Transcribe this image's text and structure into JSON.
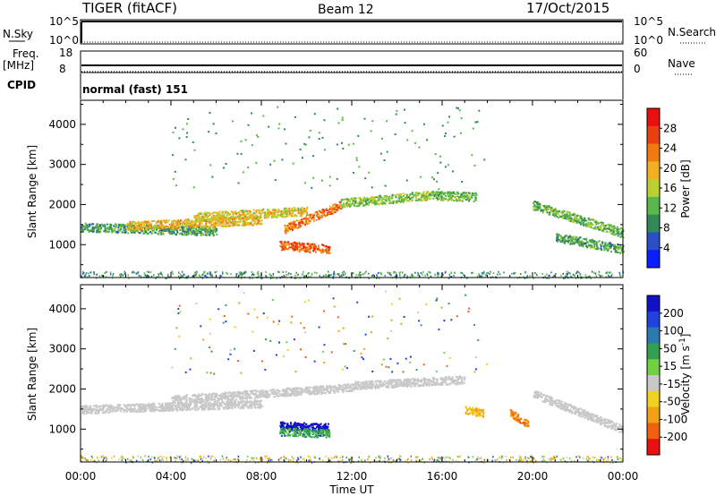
{
  "header": {
    "radar": "TIGER (fitACF)",
    "beam": "Beam 12",
    "date": "17/Oct/2015"
  },
  "param_panels": {
    "nsky_label": "N.Sky",
    "nsearch_label": "N.Search",
    "freq_label": "Freq.",
    "freq_unit": "[MHz]",
    "nave_label": "Nave",
    "cpid_label": "CPID",
    "cpid_value": "normal (fast) 151",
    "noise_ticks_left": [
      "10^5",
      "10^0"
    ],
    "noise_ticks_right": [
      "10^5",
      "10^0"
    ],
    "freq_ticks_left": [
      "18",
      "8"
    ],
    "freq_ticks_right": [
      "60",
      "0"
    ]
  },
  "x_axis": {
    "label": "Time UT",
    "ticks": [
      "00:00",
      "04:00",
      "08:00",
      "12:00",
      "16:00",
      "20:00",
      "00:00"
    ]
  },
  "y_axis": {
    "label": "Slant Range [km]",
    "ticks": [
      "1000",
      "2000",
      "3000",
      "4000"
    ]
  },
  "power_colorbar": {
    "label": "Power [dB]",
    "ticks": [
      "4",
      "8",
      "12",
      "16",
      "20",
      "24",
      "28"
    ],
    "colors": [
      "#0a1eff",
      "#2a4fc8",
      "#2f8a58",
      "#58b84a",
      "#b8d030",
      "#f0b020",
      "#f07a10",
      "#e84010",
      "#e81010"
    ]
  },
  "velocity_colorbar": {
    "label": "Velocity [m s^-1]",
    "ticks": [
      "200",
      "100",
      "50",
      "15",
      "-15",
      "-50",
      "-100",
      "-200"
    ],
    "colors": [
      "#1010c8",
      "#2040e0",
      "#2a7ab0",
      "#30a050",
      "#70d040",
      "#c8c8c8",
      "#f0d020",
      "#f0a010",
      "#f06010",
      "#e81010"
    ]
  },
  "chart_data": [
    {
      "type": "heatmap",
      "title": "Power [dB]",
      "xlabel": "Time UT",
      "ylabel": "Slant Range [km]",
      "xlim": [
        0,
        24
      ],
      "ylim": [
        180,
        4600
      ],
      "series": [
        {
          "t0": 0,
          "t1": 6,
          "r0": 1450,
          "r1": 1350,
          "level": 10
        },
        {
          "t0": 2,
          "t1": 8,
          "r0": 1480,
          "r1": 1620,
          "level": 20
        },
        {
          "t0": 5,
          "t1": 10,
          "r0": 1700,
          "r1": 1850,
          "level": 18
        },
        {
          "t0": 9,
          "t1": 11.5,
          "r0": 1400,
          "r1": 2000,
          "level": 24
        },
        {
          "t0": 8.8,
          "t1": 11,
          "r0": 1000,
          "r1": 900,
          "level": 26
        },
        {
          "t0": 11.5,
          "t1": 15.5,
          "r0": 2050,
          "r1": 2250,
          "level": 14
        },
        {
          "t0": 15.5,
          "t1": 17.5,
          "r0": 2250,
          "r1": 2200,
          "level": 12
        },
        {
          "t0": 20,
          "t1": 24,
          "r0": 2000,
          "r1": 1300,
          "level": 12
        },
        {
          "t0": 21,
          "t1": 24,
          "r0": 1200,
          "r1": 900,
          "level": 10
        }
      ]
    },
    {
      "type": "heatmap",
      "title": "Velocity [m s^-1]",
      "xlabel": "Time UT",
      "ylabel": "Slant Range [km]",
      "xlim": [
        0,
        24
      ],
      "ylim": [
        180,
        4600
      ],
      "series": [
        {
          "t0": 0,
          "t1": 8,
          "r0": 1500,
          "r1": 1650,
          "velocity": 0
        },
        {
          "t0": 4,
          "t1": 12,
          "r0": 1750,
          "r1": 2050,
          "velocity": 0
        },
        {
          "t0": 12,
          "t1": 17,
          "r0": 2100,
          "r1": 2250,
          "velocity": 0
        },
        {
          "t0": 8.8,
          "t1": 11,
          "r0": 1100,
          "r1": 1050,
          "velocity": 200
        },
        {
          "t0": 8.8,
          "t1": 11,
          "r0": 950,
          "r1": 900,
          "velocity": 50
        },
        {
          "t0": 17,
          "t1": 17.8,
          "r0": 1500,
          "r1": 1400,
          "velocity": -50
        },
        {
          "t0": 19,
          "t1": 19.8,
          "r0": 1400,
          "r1": 1150,
          "velocity": -100
        },
        {
          "t0": 20,
          "t1": 24,
          "r0": 1900,
          "r1": 1000,
          "velocity": 0
        }
      ]
    }
  ]
}
